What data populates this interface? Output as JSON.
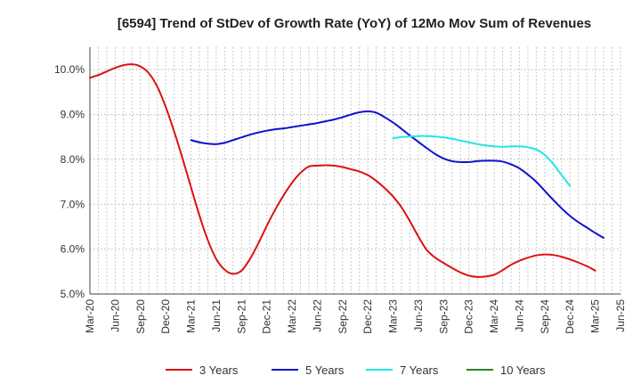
{
  "chart_data": {
    "type": "line",
    "title": "[6594]  Trend of StDev of Growth Rate (YoY) of 12Mo Mov Sum of Revenues",
    "xlabel": "",
    "ylabel": "",
    "ylim": [
      5.0,
      10.5
    ],
    "yticks": [
      5.0,
      6.0,
      7.0,
      8.0,
      9.0,
      10.0
    ],
    "ytick_labels": [
      "5.0%",
      "6.0%",
      "7.0%",
      "8.0%",
      "9.0%",
      "10.0%"
    ],
    "x_start": "Mar-20",
    "x_months_total": 63,
    "xtick_labels": [
      "Mar-20",
      "Jun-20",
      "Sep-20",
      "Dec-20",
      "Mar-21",
      "Jun-21",
      "Sep-21",
      "Dec-21",
      "Mar-22",
      "Jun-22",
      "Sep-22",
      "Dec-22",
      "Mar-23",
      "Jun-23",
      "Sep-23",
      "Dec-23",
      "Mar-24",
      "Jun-24",
      "Sep-24",
      "Dec-24",
      "Mar-25",
      "Jun-25"
    ],
    "grid": true,
    "legend_position": "bottom",
    "series": [
      {
        "name": "3 Years",
        "color": "#dd1111",
        "start_month_index": 0,
        "values": [
          9.82,
          9.88,
          9.96,
          10.04,
          10.1,
          10.12,
          10.07,
          9.92,
          9.62,
          9.17,
          8.62,
          8.02,
          7.38,
          6.75,
          6.2,
          5.78,
          5.54,
          5.45,
          5.52,
          5.78,
          6.13,
          6.52,
          6.88,
          7.2,
          7.48,
          7.7,
          7.84,
          7.86,
          7.87,
          7.86,
          7.83,
          7.78,
          7.73,
          7.65,
          7.52,
          7.36,
          7.17,
          6.93,
          6.62,
          6.28,
          5.98,
          5.81,
          5.69,
          5.58,
          5.48,
          5.41,
          5.38,
          5.39,
          5.43,
          5.53,
          5.65,
          5.74,
          5.81,
          5.86,
          5.88,
          5.87,
          5.83,
          5.77,
          5.7,
          5.62,
          5.52
        ]
      },
      {
        "name": "5 Years",
        "color": "#1111cc",
        "start_month_index": 12,
        "values": [
          8.43,
          8.38,
          8.35,
          8.34,
          8.37,
          8.43,
          8.49,
          8.55,
          8.6,
          8.64,
          8.67,
          8.69,
          8.72,
          8.75,
          8.78,
          8.81,
          8.85,
          8.89,
          8.94,
          9.0,
          9.05,
          9.07,
          9.04,
          8.94,
          8.82,
          8.68,
          8.53,
          8.39,
          8.25,
          8.12,
          8.02,
          7.96,
          7.94,
          7.94,
          7.96,
          7.97,
          7.97,
          7.95,
          7.89,
          7.8,
          7.66,
          7.5,
          7.3,
          7.1,
          6.91,
          6.74,
          6.6,
          6.48,
          6.36,
          6.25
        ]
      },
      {
        "name": "7 Years",
        "color": "#22e6e6",
        "start_month_index": 36,
        "values": [
          8.47,
          8.5,
          8.51,
          8.52,
          8.52,
          8.51,
          8.49,
          8.46,
          8.42,
          8.38,
          8.34,
          8.31,
          8.29,
          8.28,
          8.29,
          8.29,
          8.27,
          8.22,
          8.1,
          7.9,
          7.65,
          7.41
        ]
      },
      {
        "name": "10 Years",
        "color": "#228822",
        "start_month_index": 0,
        "values": []
      }
    ]
  }
}
